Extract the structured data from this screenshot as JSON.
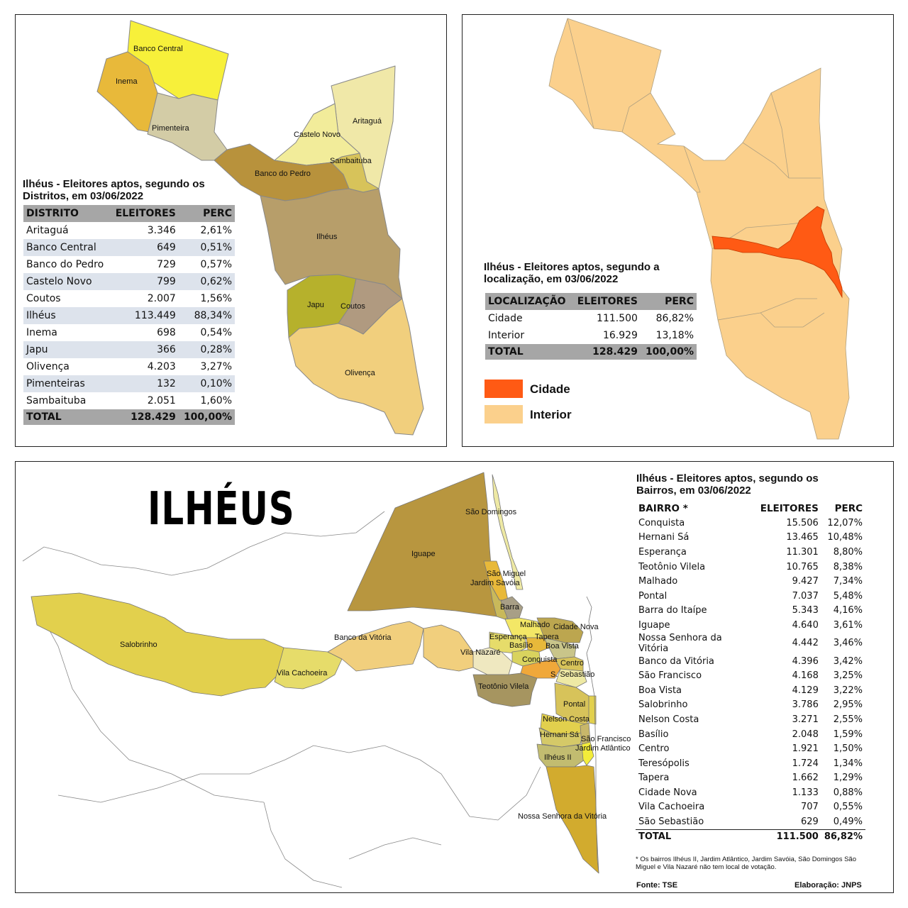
{
  "panel1": {
    "title": "Ilhéus - Eleitores aptos, segundo os Distritos, em 03/06/2022",
    "headers": [
      "DISTRITO",
      "ELEITORES",
      "PERC"
    ],
    "rows": [
      [
        "Aritaguá",
        "3.346",
        "2,61%"
      ],
      [
        "Banco Central",
        "649",
        "0,51%"
      ],
      [
        "Banco do Pedro",
        "729",
        "0,57%"
      ],
      [
        "Castelo Novo",
        "799",
        "0,62%"
      ],
      [
        "Coutos",
        "2.007",
        "1,56%"
      ],
      [
        "Ilhéus",
        "113.449",
        "88,34%"
      ],
      [
        "Inema",
        "698",
        "0,54%"
      ],
      [
        "Japu",
        "366",
        "0,28%"
      ],
      [
        "Olivença",
        "4.203",
        "3,27%"
      ],
      [
        "Pimenteiras",
        "132",
        "0,10%"
      ],
      [
        "Sambaituba",
        "2.051",
        "1,60%"
      ]
    ],
    "total": [
      "TOTAL",
      "128.429",
      "100,00%"
    ],
    "map_labels": {
      "banco_central": "Banco Central",
      "inema": "Inema",
      "pimenteira": "Pimenteira",
      "aritagua": "Aritaguá",
      "castelo_novo": "Castelo Novo",
      "sambaituba": "Sambaituba",
      "banco_do_pedro": "Banco do Pedro",
      "ilheus": "Ilhéus",
      "japu": "Japu",
      "coutos": "Coutos",
      "olivenca": "Olivença"
    },
    "colors": {
      "banco_central": "#f7f03a",
      "inema": "#e8b93a",
      "pimenteira": "#d3cca6",
      "aritagua": "#f0e8a8",
      "castelo_novo": "#f2ec9a",
      "sambaituba": "#d7c35a",
      "banco_do_pedro": "#b8923c",
      "ilheus": "#b79e6a",
      "japu": "#b6b12c",
      "coutos": "#b09a80",
      "olivenca": "#f1cf7d"
    }
  },
  "panel2": {
    "title": "Ilhéus - Eleitores aptos, segundo a localização, em 03/06/2022",
    "headers": [
      "LOCALIZAÇÃO",
      "ELEITORES",
      "PERC"
    ],
    "rows": [
      [
        "Cidade",
        "111.500",
        "86,82%"
      ],
      [
        "Interior",
        "16.929",
        "13,18%"
      ]
    ],
    "total": [
      "TOTAL",
      "128.429",
      "100,00%"
    ],
    "legend": [
      {
        "label": "Cidade",
        "color": "#ff5a14"
      },
      {
        "label": "Interior",
        "color": "#fbd08c"
      }
    ]
  },
  "panel3": {
    "big_title": "ILHÉUS",
    "title": "Ilhéus - Eleitores aptos, segundo os Bairros, em 03/06/2022",
    "headers": [
      "BAIRRO *",
      "ELEITORES",
      "PERC"
    ],
    "rows": [
      [
        "Conquista",
        "15.506",
        "12,07%"
      ],
      [
        "Hernani Sá",
        "13.465",
        "10,48%"
      ],
      [
        "Esperança",
        "11.301",
        "8,80%"
      ],
      [
        "Teotônio Vilela",
        "10.765",
        "8,38%"
      ],
      [
        "Malhado",
        "9.427",
        "7,34%"
      ],
      [
        "Pontal",
        "7.037",
        "5,48%"
      ],
      [
        "Barra do Itaípe",
        "5.343",
        "4,16%"
      ],
      [
        "Iguape",
        "4.640",
        "3,61%"
      ],
      [
        "Nossa Senhora da Vitória",
        "4.442",
        "3,46%"
      ],
      [
        "Banco da Vitória",
        "4.396",
        "3,42%"
      ],
      [
        "São Francisco",
        "4.168",
        "3,25%"
      ],
      [
        "Boa Vista",
        "4.129",
        "3,22%"
      ],
      [
        "Salobrinho",
        "3.786",
        "2,95%"
      ],
      [
        "Nelson Costa",
        "3.271",
        "2,55%"
      ],
      [
        "Basílio",
        "2.048",
        "1,59%"
      ],
      [
        "Centro",
        "1.921",
        "1,50%"
      ],
      [
        "Teresópolis",
        "1.724",
        "1,34%"
      ],
      [
        "Tapera",
        "1.662",
        "1,29%"
      ],
      [
        "Cidade Nova",
        "1.133",
        "0,88%"
      ],
      [
        "Vila Cachoeira",
        "707",
        "0,55%"
      ],
      [
        "São Sebastião",
        "629",
        "0,49%"
      ]
    ],
    "total": [
      "TOTAL",
      "111.500",
      "86,82%"
    ],
    "note": "* Os bairros Ilhéus II, Jardim Atlântico, Jardim Savóia, São Domingos São Miguel e Vila Nazaré não tem local de votação.",
    "source": "Fonte: TSE",
    "credit": "Elaboração: JNPS",
    "map_labels": {
      "sao_domingos": "São Domingos",
      "iguape": "Iguape",
      "sao_miguel": "São Miguel",
      "jardim_savoia": "Jardim Savóia",
      "barra": "Barra",
      "malhado": "Malhado",
      "cidade_nova": "Cidade Nova",
      "esperanca": "Esperança",
      "tapera": "Tapera",
      "boa_vista": "Boa Vista",
      "basilio": "Basílio",
      "vila_nazare": "Vila Nazaré",
      "conquista": "Conquista",
      "centro": "Centro",
      "sao_sebastiao": "S. Sebastião",
      "salobrinho": "Salobrinho",
      "banco_da_vitoria": "Banco da Vitória",
      "vila_cachoeira": "Vila Cachoeira",
      "teotonio_vilela": "Teotônio Vilela",
      "pontal": "Pontal",
      "nelson_costa": "Nelson Costa",
      "hernani_sa": "Hernani Sá",
      "sao_francisco": "São Francisco",
      "jardim_atlantico": "Jardim Atlântico",
      "ilheus_ii": "Ilhéus II",
      "nsv": "Nossa Senhora da Vitória"
    }
  }
}
